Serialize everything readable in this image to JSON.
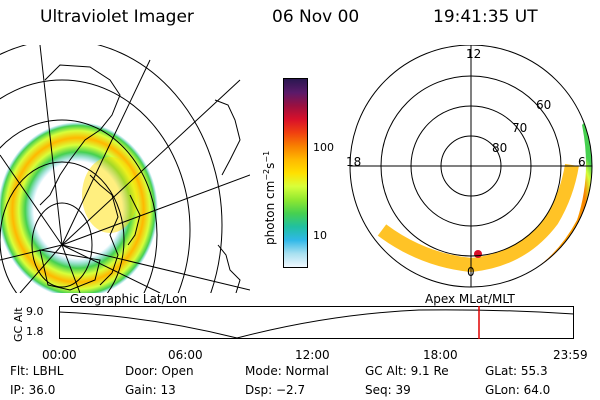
{
  "header": {
    "instrument": "Ultraviolet Imager",
    "date": "06 Nov 00",
    "time": "19:41:35 UT"
  },
  "colorbar": {
    "unit": "photon cm",
    "unit_exp_1": "−2",
    "unit_s": "s",
    "unit_exp_2": "−1",
    "tick_100": "100",
    "tick_10": "10",
    "colors": [
      "#2a1750",
      "#5a1a6a",
      "#9a1040",
      "#d8102a",
      "#f04010",
      "#f88000",
      "#ffb800",
      "#ffe000",
      "#d8ff3a",
      "#90e830",
      "#46d050",
      "#20c0a0",
      "#30b8e8",
      "#a8e0f0",
      "#f0f8ff"
    ]
  },
  "geo_panel": {
    "label": "Geographic Lat/Lon"
  },
  "polar_panel": {
    "label": "Apex MLat/MLT",
    "mlt_labels": {
      "top": "12",
      "left": "18",
      "right": "6",
      "bottom": "0"
    },
    "lat_labels": [
      "60",
      "70",
      "80"
    ]
  },
  "alt_plot": {
    "ylabel": "GC Alt",
    "ytick_high": "9.0",
    "ytick_low": "1.8",
    "xticks": [
      "00:00",
      "06:00",
      "12:00",
      "18:00",
      "23:59"
    ],
    "marker_color": "#e00000"
  },
  "footer": {
    "flt": "Flt: LBHL",
    "ip": "IP: 36.0",
    "door": "Door: Open",
    "gain": "Gain: 13",
    "mode": "Mode: Normal",
    "dsp": "Dsp:    −2.7",
    "gcalt": "GC Alt: 9.1 Re",
    "seq": "Seq: 39",
    "glat": "GLat:    55.3",
    "glon": "GLon:   64.0"
  }
}
